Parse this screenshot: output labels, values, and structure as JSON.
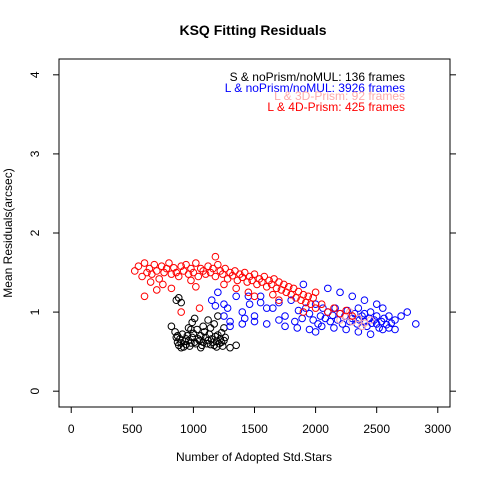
{
  "chart_data": {
    "type": "scatter",
    "title": "KSQ Fitting Residuals",
    "xlabel": "Number of Adopted Std.Stars",
    "ylabel": "Mean Residuals(arcsec)",
    "xlim": [
      -100,
      3100
    ],
    "ylim": [
      -0.2,
      4.2
    ],
    "xticks": [
      "0",
      "500",
      "1000",
      "1500",
      "2000",
      "2500",
      "3000"
    ],
    "yticks": [
      "0",
      "1",
      "2",
      "3",
      "4"
    ],
    "legend_placement": "top-right",
    "series": [
      {
        "name": "S & noPrism/noMUL:  136 frames",
        "color": "#000000",
        "points": [
          [
            820,
            0.82
          ],
          [
            850,
            0.75
          ],
          [
            860,
            0.68
          ],
          [
            870,
            0.62
          ],
          [
            880,
            0.58
          ],
          [
            890,
            0.66
          ],
          [
            900,
            0.61
          ],
          [
            910,
            0.72
          ],
          [
            920,
            0.56
          ],
          [
            930,
            0.63
          ],
          [
            940,
            0.59
          ],
          [
            950,
            0.7
          ],
          [
            960,
            0.64
          ],
          [
            970,
            0.57
          ],
          [
            980,
            0.61
          ],
          [
            990,
            0.68
          ],
          [
            1000,
            0.73
          ],
          [
            1010,
            0.62
          ],
          [
            1020,
            0.6
          ],
          [
            1030,
            0.78
          ],
          [
            1040,
            0.66
          ],
          [
            1050,
            0.64
          ],
          [
            1060,
            0.7
          ],
          [
            1070,
            0.58
          ],
          [
            1080,
            0.62
          ],
          [
            1090,
            0.75
          ],
          [
            1100,
            0.68
          ],
          [
            1110,
            0.6
          ],
          [
            1120,
            0.64
          ],
          [
            1130,
            0.72
          ],
          [
            1140,
            0.8
          ],
          [
            1150,
            0.66
          ],
          [
            1160,
            0.62
          ],
          [
            1170,
            0.58
          ],
          [
            1180,
            0.69
          ],
          [
            1190,
            0.63
          ],
          [
            1200,
            0.71
          ],
          [
            1210,
            0.6
          ],
          [
            1220,
            0.66
          ],
          [
            1230,
            0.62
          ],
          [
            1240,
            0.57
          ],
          [
            1250,
            0.64
          ],
          [
            1260,
            0.68
          ],
          [
            1300,
            0.55
          ],
          [
            1350,
            0.58
          ],
          [
            1080,
            0.82
          ],
          [
            1120,
            0.9
          ],
          [
            1170,
            0.85
          ],
          [
            1200,
            0.95
          ],
          [
            1250,
            0.8
          ],
          [
            980,
            0.78
          ],
          [
            940,
            0.66
          ],
          [
            900,
            0.55
          ],
          [
            870,
            0.7
          ],
          [
            1010,
            0.92
          ],
          [
            1190,
            0.56
          ],
          [
            1230,
            0.74
          ],
          [
            1140,
            0.59
          ],
          [
            1060,
            0.55
          ],
          [
            960,
            0.8
          ],
          [
            860,
            1.15
          ],
          [
            900,
            1.12
          ],
          [
            880,
            1.18
          ],
          [
            990,
            0.87
          ]
        ]
      },
      {
        "name": "L & noPrism/noMUL: 3926 frames",
        "color": "#0000ff",
        "points": [
          [
            1150,
            1.15
          ],
          [
            1180,
            1.08
          ],
          [
            1250,
            0.95
          ],
          [
            1280,
            1.05
          ],
          [
            1300,
            0.88
          ],
          [
            1350,
            1.2
          ],
          [
            1400,
            1.0
          ],
          [
            1420,
            0.92
          ],
          [
            1460,
            1.1
          ],
          [
            1500,
            0.95
          ],
          [
            1550,
            1.2
          ],
          [
            1600,
            0.85
          ],
          [
            1650,
            1.05
          ],
          [
            1700,
            1.12
          ],
          [
            1750,
            0.95
          ],
          [
            1800,
            1.15
          ],
          [
            1830,
            0.88
          ],
          [
            1860,
            1.02
          ],
          [
            1890,
            0.92
          ],
          [
            1920,
            1.05
          ],
          [
            1950,
            0.98
          ],
          [
            1980,
            0.9
          ],
          [
            2000,
            1.1
          ],
          [
            2020,
            0.85
          ],
          [
            2040,
            0.95
          ],
          [
            2060,
            1.05
          ],
          [
            2080,
            0.92
          ],
          [
            2100,
            1.0
          ],
          [
            2120,
            0.88
          ],
          [
            2140,
            0.96
          ],
          [
            2160,
            1.05
          ],
          [
            2180,
            0.9
          ],
          [
            2200,
            0.98
          ],
          [
            2220,
            0.85
          ],
          [
            2240,
            0.95
          ],
          [
            2260,
            1.02
          ],
          [
            2280,
            0.88
          ],
          [
            2300,
            0.92
          ],
          [
            2320,
            0.98
          ],
          [
            2340,
            0.85
          ],
          [
            2360,
            0.9
          ],
          [
            2380,
            0.95
          ],
          [
            2400,
            0.88
          ],
          [
            2420,
            0.82
          ],
          [
            2440,
            0.92
          ],
          [
            2460,
            0.86
          ],
          [
            2480,
            0.9
          ],
          [
            2500,
            0.85
          ],
          [
            2520,
            0.8
          ],
          [
            2540,
            0.88
          ],
          [
            2560,
            0.92
          ],
          [
            2580,
            0.84
          ],
          [
            2600,
            0.95
          ],
          [
            2620,
            0.86
          ],
          [
            2650,
            0.9
          ],
          [
            2700,
            0.95
          ],
          [
            2750,
            1.0
          ],
          [
            2820,
            0.85
          ],
          [
            2300,
            1.2
          ],
          [
            2400,
            1.15
          ],
          [
            2500,
            1.1
          ],
          [
            2200,
            1.25
          ],
          [
            2100,
            1.3
          ],
          [
            1900,
            1.35
          ],
          [
            2000,
            0.75
          ],
          [
            2150,
            0.8
          ],
          [
            2250,
            0.78
          ],
          [
            2350,
            0.75
          ],
          [
            2450,
            0.72
          ],
          [
            2550,
            0.78
          ],
          [
            1700,
            0.9
          ],
          [
            1600,
            1.05
          ],
          [
            1750,
            0.82
          ],
          [
            1850,
            0.8
          ],
          [
            1950,
            0.78
          ],
          [
            2050,
            0.82
          ],
          [
            2350,
            1.05
          ],
          [
            2450,
            1.0
          ],
          [
            2550,
            1.05
          ],
          [
            1500,
            0.88
          ],
          [
            1400,
            0.85
          ],
          [
            1300,
            0.82
          ],
          [
            1250,
            1.1
          ],
          [
            1200,
            1.25
          ],
          [
            1450,
            1.2
          ],
          [
            1550,
            1.12
          ],
          [
            2600,
            0.8
          ],
          [
            2650,
            0.78
          ],
          [
            2500,
            0.95
          ],
          [
            2400,
            0.98
          ]
        ]
      },
      {
        "name": "L & 3D-Prism:  92 frames",
        "color": "#ffaaaa",
        "points": [
          [
            2200,
            0.9
          ],
          [
            2250,
            0.95
          ],
          [
            2300,
            0.88
          ],
          [
            2350,
            0.92
          ],
          [
            2400,
            0.86
          ],
          [
            2450,
            0.9
          ],
          [
            2280,
            1.0
          ],
          [
            2380,
            0.82
          ]
        ]
      },
      {
        "name": "L & 4D-Prism:  425 frames",
        "color": "#ff0000",
        "points": [
          [
            520,
            1.52
          ],
          [
            550,
            1.58
          ],
          [
            580,
            1.45
          ],
          [
            600,
            1.62
          ],
          [
            620,
            1.5
          ],
          [
            640,
            1.55
          ],
          [
            660,
            1.48
          ],
          [
            680,
            1.6
          ],
          [
            700,
            1.52
          ],
          [
            720,
            1.42
          ],
          [
            740,
            1.58
          ],
          [
            760,
            1.5
          ],
          [
            780,
            1.55
          ],
          [
            800,
            1.62
          ],
          [
            820,
            1.48
          ],
          [
            840,
            1.56
          ],
          [
            860,
            1.5
          ],
          [
            880,
            1.45
          ],
          [
            900,
            1.58
          ],
          [
            920,
            1.52
          ],
          [
            940,
            1.6
          ],
          [
            960,
            1.48
          ],
          [
            980,
            1.55
          ],
          [
            1000,
            1.5
          ],
          [
            1020,
            1.62
          ],
          [
            1040,
            1.45
          ],
          [
            1060,
            1.55
          ],
          [
            1080,
            1.52
          ],
          [
            1100,
            1.48
          ],
          [
            1120,
            1.58
          ],
          [
            1140,
            1.5
          ],
          [
            1160,
            1.55
          ],
          [
            1180,
            1.45
          ],
          [
            1200,
            1.6
          ],
          [
            1220,
            1.52
          ],
          [
            1240,
            1.48
          ],
          [
            1260,
            1.55
          ],
          [
            1280,
            1.42
          ],
          [
            1300,
            1.5
          ],
          [
            1320,
            1.46
          ],
          [
            1340,
            1.52
          ],
          [
            1360,
            1.4
          ],
          [
            1380,
            1.48
          ],
          [
            1400,
            1.44
          ],
          [
            1420,
            1.5
          ],
          [
            1440,
            1.38
          ],
          [
            1460,
            1.45
          ],
          [
            1480,
            1.4
          ],
          [
            1500,
            1.48
          ],
          [
            1520,
            1.35
          ],
          [
            1540,
            1.42
          ],
          [
            1560,
            1.38
          ],
          [
            1580,
            1.45
          ],
          [
            1600,
            1.32
          ],
          [
            1620,
            1.4
          ],
          [
            1640,
            1.35
          ],
          [
            1660,
            1.42
          ],
          [
            1680,
            1.3
          ],
          [
            1700,
            1.38
          ],
          [
            1720,
            1.28
          ],
          [
            1740,
            1.35
          ],
          [
            1760,
            1.25
          ],
          [
            1780,
            1.32
          ],
          [
            1800,
            1.22
          ],
          [
            1820,
            1.3
          ],
          [
            1840,
            1.18
          ],
          [
            1860,
            1.26
          ],
          [
            1880,
            1.15
          ],
          [
            1900,
            1.22
          ],
          [
            1920,
            1.12
          ],
          [
            1940,
            1.2
          ],
          [
            1960,
            1.1
          ],
          [
            1980,
            1.18
          ],
          [
            2000,
            1.05
          ],
          [
            2050,
            1.1
          ],
          [
            2100,
            1.0
          ],
          [
            2150,
            1.05
          ],
          [
            2200,
            0.98
          ],
          [
            2250,
            1.02
          ],
          [
            2300,
            0.95
          ],
          [
            1180,
            1.7
          ],
          [
            650,
            1.38
          ],
          [
            700,
            1.28
          ],
          [
            750,
            1.35
          ],
          [
            820,
            1.3
          ],
          [
            600,
            1.2
          ],
          [
            1020,
            1.32
          ],
          [
            1350,
            1.3
          ],
          [
            1500,
            1.2
          ],
          [
            1650,
            1.22
          ],
          [
            980,
            1.4
          ],
          [
            1250,
            1.35
          ],
          [
            1450,
            1.25
          ],
          [
            900,
            1.0
          ],
          [
            1050,
            1.05
          ],
          [
            1700,
            1.15
          ],
          [
            2000,
            1.25
          ],
          [
            1900,
            1.0
          ]
        ]
      }
    ]
  }
}
